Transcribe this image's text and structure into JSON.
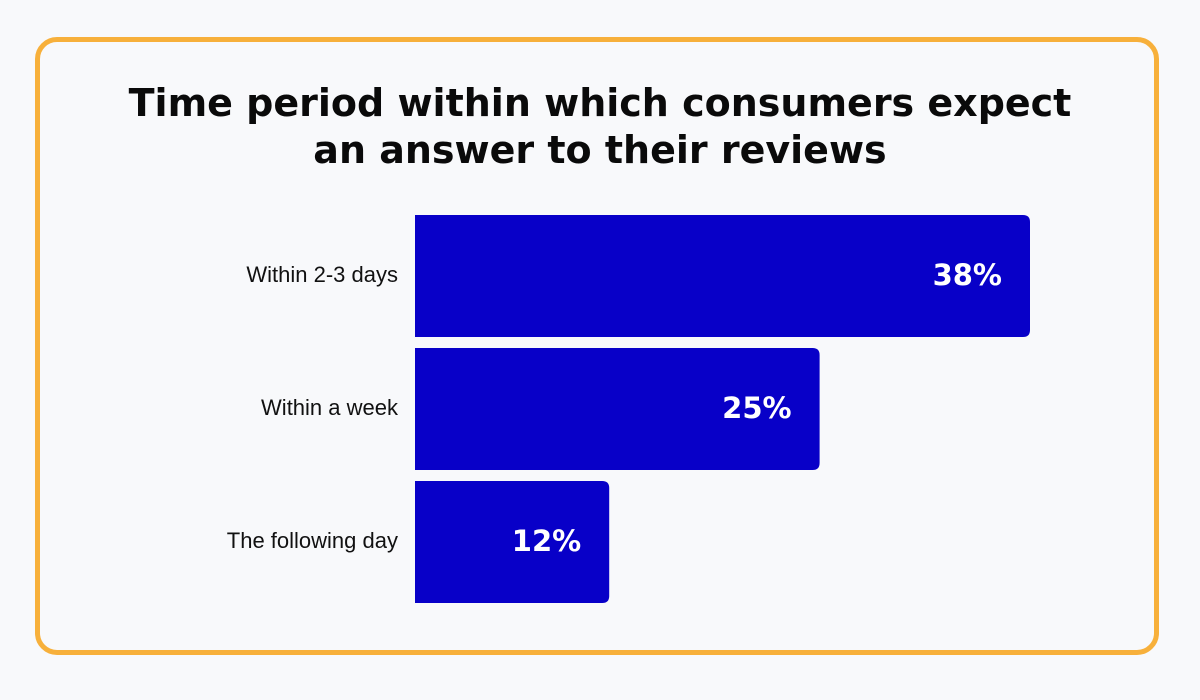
{
  "chart_data": {
    "type": "bar",
    "orientation": "horizontal",
    "title_lines": [
      "Time period within which consumers expect",
      "an answer to their reviews"
    ],
    "categories": [
      "Within 2-3 days",
      "Within a week",
      "The following day"
    ],
    "values": [
      38,
      25,
      12
    ],
    "value_labels": [
      "38%",
      "25%",
      "12%"
    ],
    "unit": "%",
    "xlim": [
      0,
      38
    ],
    "grid": false,
    "legend": "none",
    "bar_color": "#0800c8"
  },
  "colors": {
    "frame_border": "#f7b03b",
    "background": "#f8f9fb",
    "text": "#0a0a0a",
    "value_text": "#ffffff"
  }
}
